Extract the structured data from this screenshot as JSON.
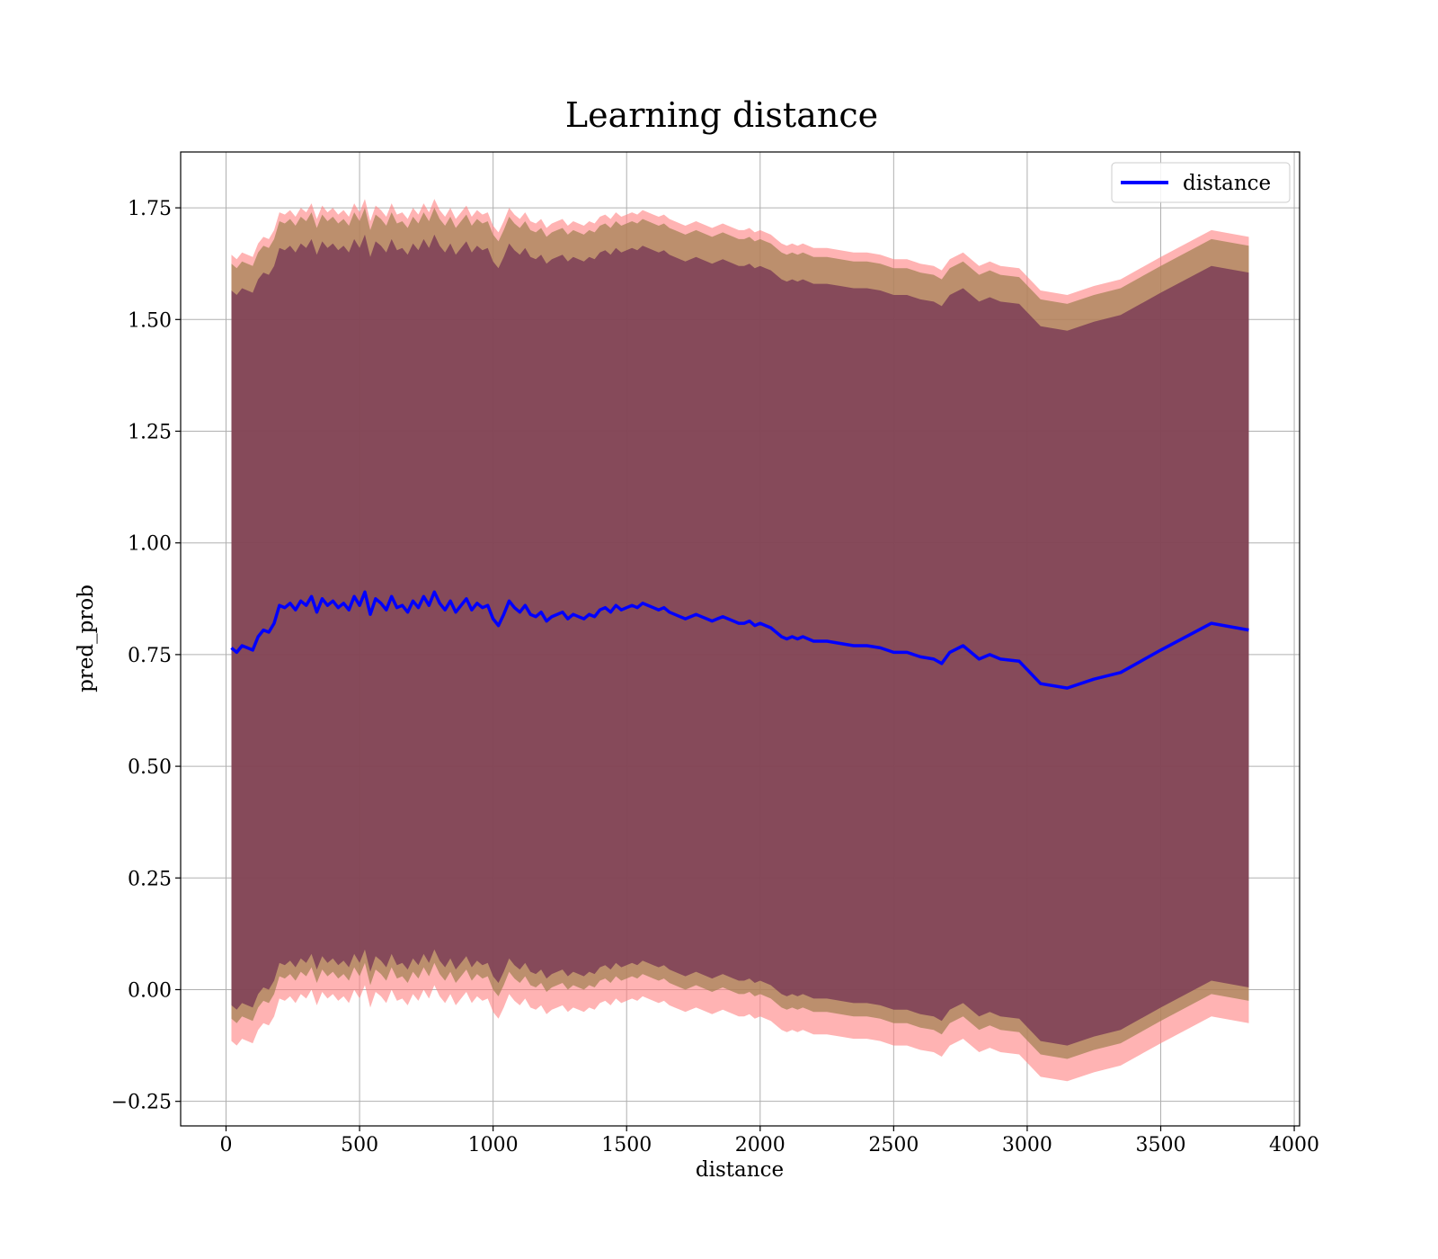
{
  "chart_data": {
    "type": "line",
    "title": "Learning distance",
    "xlabel": "distance",
    "ylabel": "pred_prob",
    "xlim": [
      -170,
      4020
    ],
    "ylim": [
      -0.305,
      1.875
    ],
    "xticks": [
      0,
      500,
      1000,
      1500,
      2000,
      2500,
      3000,
      3500,
      4000
    ],
    "yticks": [
      -0.25,
      0.0,
      0.25,
      0.5,
      0.75,
      1.0,
      1.25,
      1.5,
      1.75
    ],
    "grid": true,
    "legend": {
      "position": "top-right",
      "entries": [
        "distance"
      ]
    },
    "colors": {
      "line": "#0000ff",
      "band_outer": "#ff8080",
      "band_middle": "#a08050",
      "band_inner": "#7a3a55",
      "grid": "#b0b0b0"
    },
    "series": [
      {
        "name": "distance",
        "x": [
          20,
          40,
          60,
          80,
          100,
          120,
          140,
          160,
          180,
          200,
          220,
          240,
          260,
          280,
          300,
          320,
          340,
          360,
          380,
          400,
          420,
          440,
          460,
          480,
          500,
          520,
          540,
          560,
          580,
          600,
          620,
          640,
          660,
          680,
          700,
          720,
          740,
          760,
          780,
          800,
          820,
          840,
          860,
          880,
          900,
          920,
          940,
          960,
          980,
          1000,
          1020,
          1040,
          1060,
          1080,
          1100,
          1120,
          1140,
          1160,
          1180,
          1200,
          1220,
          1240,
          1260,
          1280,
          1300,
          1320,
          1340,
          1360,
          1380,
          1400,
          1420,
          1440,
          1460,
          1480,
          1500,
          1520,
          1540,
          1560,
          1580,
          1600,
          1620,
          1640,
          1660,
          1680,
          1700,
          1720,
          1740,
          1760,
          1780,
          1800,
          1820,
          1840,
          1860,
          1880,
          1900,
          1920,
          1940,
          1960,
          1980,
          2000,
          2020,
          2040,
          2060,
          2080,
          2100,
          2120,
          2140,
          2160,
          2180,
          2200,
          2250,
          2300,
          2350,
          2400,
          2450,
          2500,
          2550,
          2600,
          2650,
          2680,
          2710,
          2760,
          2820,
          2860,
          2900,
          2970,
          3050,
          3150,
          3250,
          3350,
          3500,
          3690,
          3830
        ],
        "values": [
          0.765,
          0.755,
          0.77,
          0.765,
          0.76,
          0.79,
          0.805,
          0.8,
          0.82,
          0.86,
          0.855,
          0.865,
          0.85,
          0.87,
          0.86,
          0.88,
          0.845,
          0.875,
          0.86,
          0.87,
          0.855,
          0.865,
          0.85,
          0.88,
          0.86,
          0.89,
          0.84,
          0.875,
          0.865,
          0.85,
          0.88,
          0.855,
          0.86,
          0.845,
          0.87,
          0.855,
          0.88,
          0.86,
          0.89,
          0.865,
          0.85,
          0.87,
          0.845,
          0.86,
          0.875,
          0.85,
          0.865,
          0.855,
          0.86,
          0.83,
          0.815,
          0.84,
          0.87,
          0.855,
          0.845,
          0.86,
          0.84,
          0.835,
          0.845,
          0.825,
          0.835,
          0.84,
          0.845,
          0.83,
          0.84,
          0.835,
          0.83,
          0.84,
          0.835,
          0.85,
          0.855,
          0.845,
          0.86,
          0.85,
          0.855,
          0.86,
          0.855,
          0.865,
          0.86,
          0.855,
          0.85,
          0.855,
          0.845,
          0.84,
          0.835,
          0.83,
          0.835,
          0.84,
          0.835,
          0.83,
          0.825,
          0.83,
          0.835,
          0.83,
          0.825,
          0.82,
          0.82,
          0.825,
          0.815,
          0.82,
          0.815,
          0.81,
          0.8,
          0.79,
          0.785,
          0.79,
          0.785,
          0.79,
          0.785,
          0.78,
          0.78,
          0.775,
          0.77,
          0.77,
          0.765,
          0.755,
          0.755,
          0.745,
          0.74,
          0.73,
          0.755,
          0.77,
          0.74,
          0.75,
          0.74,
          0.735,
          0.685,
          0.675,
          0.695,
          0.71,
          0.76,
          0.82,
          0.805
        ]
      }
    ],
    "bands": [
      {
        "name": "outer",
        "lower_offset": -0.88,
        "upper_offset": 0.88
      },
      {
        "name": "middle",
        "lower_offset": -0.83,
        "upper_offset": 0.86
      },
      {
        "name": "inner",
        "lower_offset": -0.8,
        "upper_offset": 0.8
      }
    ]
  }
}
